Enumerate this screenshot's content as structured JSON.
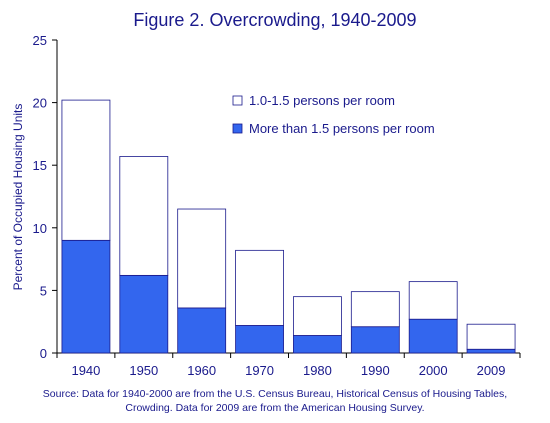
{
  "chart_data": {
    "type": "bar",
    "stacked": true,
    "title": "Figure 2. Overcrowding, 1940-2009",
    "ylabel": "Percent of Occupied Housing Units",
    "xlabel": "",
    "ylim": [
      0,
      25
    ],
    "yticks": [
      0,
      5,
      10,
      15,
      20,
      25
    ],
    "grid": false,
    "legend_position": "top-right",
    "categories": [
      "1940",
      "1950",
      "1960",
      "1970",
      "1980",
      "1990",
      "2000",
      "2009"
    ],
    "series": [
      {
        "name": "More than 1.5 persons per room",
        "color": "#3366ee",
        "values": [
          9.0,
          6.2,
          3.6,
          2.2,
          1.4,
          2.1,
          2.7,
          0.3
        ]
      },
      {
        "name": "1.0-1.5 persons per room",
        "color": "#ffffff",
        "values": [
          11.2,
          9.5,
          7.9,
          6.0,
          3.1,
          2.8,
          3.0,
          2.0
        ]
      }
    ],
    "legend_order": [
      1,
      0
    ],
    "source_lines": [
      "Source:  Data for 1940-2000 are from the U.S. Census Bureau, Historical Census of Housing Tables,",
      "Crowding.  Data for 2009 are from the American Housing Survey."
    ]
  }
}
